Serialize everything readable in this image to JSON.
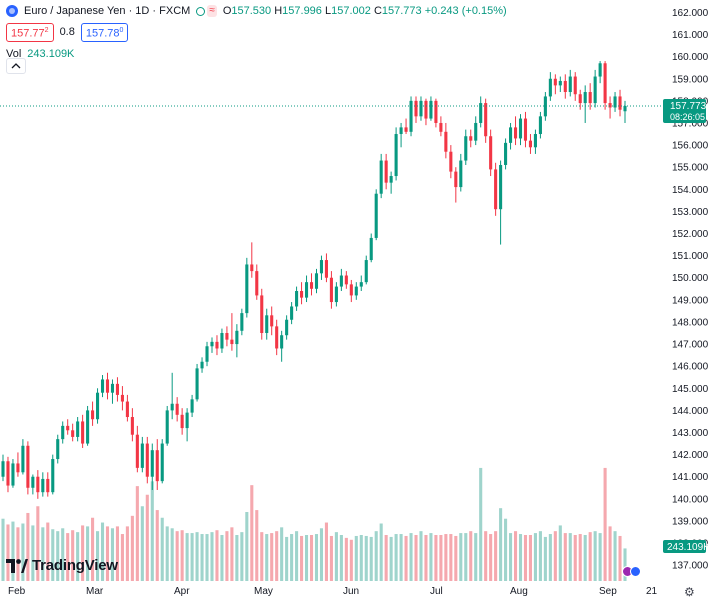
{
  "header": {
    "symbol_title": "Euro / Japanese Yen · 1D · FXCM",
    "ohlc": {
      "o_label": "O",
      "o_value": "157.530",
      "h_label": "H",
      "h_value": "157.996",
      "l_label": "L",
      "l_value": "157.002",
      "c_label": "C",
      "c_value": "157.773",
      "change": "+0.243 (+0.15%)"
    },
    "bid": "157.77",
    "bid_sup": "2",
    "spread": "0.8",
    "ask": "157.78",
    "ask_sup": "0",
    "volume_label": "Vol",
    "volume_value": "243.109K"
  },
  "branding": {
    "logo_text": "TradingView"
  },
  "colors": {
    "up": "#089981",
    "down": "#f23645",
    "vol_up": "#9fd4cc",
    "vol_down": "#f5a8ae",
    "accent": "#2962ff"
  },
  "icons": {
    "globe": "globe-icon",
    "collapse": "chevron-up-icon",
    "settings": "gear-icon",
    "logo": "tradingview-logo-icon"
  },
  "chart_data": {
    "type": "candlestick",
    "title": "Euro / Japanese Yen · 1D · FXCM",
    "y_axis": {
      "range": [
        136.6,
        162.2
      ],
      "ticks": [
        "137.000",
        "138.000",
        "139.000",
        "140.000",
        "141.000",
        "142.000",
        "143.000",
        "144.000",
        "145.000",
        "146.000",
        "147.000",
        "148.000",
        "149.000",
        "150.000",
        "151.000",
        "152.000",
        "153.000",
        "154.000",
        "155.000",
        "156.000",
        "157.000",
        "158.000",
        "159.000",
        "160.000",
        "161.000",
        "162.000"
      ]
    },
    "x_axis": {
      "labels": [
        "Feb",
        "Mar",
        "Apr",
        "May",
        "Jun",
        "Jul",
        "Aug",
        "Sep",
        "21"
      ]
    },
    "last_price_label": "157.773",
    "countdown_label": "08:26:05",
    "volume_last_label": "243.109K",
    "grid": false,
    "candles": [
      {
        "o": 141.0,
        "h": 142.0,
        "l": 140.8,
        "c": 141.7
      },
      {
        "o": 141.7,
        "h": 141.9,
        "l": 140.3,
        "c": 140.6
      },
      {
        "o": 140.6,
        "h": 141.8,
        "l": 140.5,
        "c": 141.6
      },
      {
        "o": 141.6,
        "h": 142.1,
        "l": 141.0,
        "c": 141.2
      },
      {
        "o": 141.2,
        "h": 142.7,
        "l": 141.1,
        "c": 142.4
      },
      {
        "o": 142.4,
        "h": 142.6,
        "l": 140.2,
        "c": 140.5
      },
      {
        "o": 140.5,
        "h": 141.1,
        "l": 140.2,
        "c": 141.0
      },
      {
        "o": 141.0,
        "h": 141.3,
        "l": 140.0,
        "c": 140.3
      },
      {
        "o": 140.3,
        "h": 141.2,
        "l": 140.1,
        "c": 140.9
      },
      {
        "o": 140.9,
        "h": 141.2,
        "l": 140.1,
        "c": 140.3
      },
      {
        "o": 140.3,
        "h": 142.0,
        "l": 140.2,
        "c": 141.8
      },
      {
        "o": 141.8,
        "h": 142.9,
        "l": 141.6,
        "c": 142.7
      },
      {
        "o": 142.7,
        "h": 143.5,
        "l": 142.5,
        "c": 143.3
      },
      {
        "o": 143.3,
        "h": 143.6,
        "l": 142.9,
        "c": 143.1
      },
      {
        "o": 143.1,
        "h": 143.4,
        "l": 142.6,
        "c": 142.8
      },
      {
        "o": 142.8,
        "h": 143.7,
        "l": 142.6,
        "c": 143.5
      },
      {
        "o": 143.5,
        "h": 143.8,
        "l": 142.3,
        "c": 142.5
      },
      {
        "o": 142.5,
        "h": 144.2,
        "l": 142.4,
        "c": 144.0
      },
      {
        "o": 144.0,
        "h": 144.4,
        "l": 143.3,
        "c": 143.6
      },
      {
        "o": 143.6,
        "h": 145.0,
        "l": 143.4,
        "c": 144.8
      },
      {
        "o": 144.8,
        "h": 145.6,
        "l": 144.6,
        "c": 145.4
      },
      {
        "o": 145.4,
        "h": 145.7,
        "l": 144.5,
        "c": 144.8
      },
      {
        "o": 144.8,
        "h": 145.4,
        "l": 144.3,
        "c": 145.2
      },
      {
        "o": 145.2,
        "h": 145.5,
        "l": 144.4,
        "c": 144.7
      },
      {
        "o": 144.7,
        "h": 145.1,
        "l": 144.0,
        "c": 144.4
      },
      {
        "o": 144.4,
        "h": 144.7,
        "l": 143.5,
        "c": 143.7
      },
      {
        "o": 143.7,
        "h": 144.1,
        "l": 142.6,
        "c": 142.9
      },
      {
        "o": 142.9,
        "h": 143.3,
        "l": 141.2,
        "c": 141.4
      },
      {
        "o": 141.4,
        "h": 142.8,
        "l": 141.2,
        "c": 142.5
      },
      {
        "o": 142.5,
        "h": 142.8,
        "l": 140.7,
        "c": 141.0
      },
      {
        "o": 141.0,
        "h": 142.5,
        "l": 140.4,
        "c": 142.2
      },
      {
        "o": 142.2,
        "h": 142.7,
        "l": 140.4,
        "c": 140.8
      },
      {
        "o": 140.8,
        "h": 142.7,
        "l": 140.7,
        "c": 142.5
      },
      {
        "o": 142.5,
        "h": 144.2,
        "l": 142.4,
        "c": 144.0
      },
      {
        "o": 144.0,
        "h": 145.7,
        "l": 143.6,
        "c": 144.3
      },
      {
        "o": 144.3,
        "h": 144.6,
        "l": 143.5,
        "c": 143.8
      },
      {
        "o": 143.8,
        "h": 144.1,
        "l": 142.9,
        "c": 143.2
      },
      {
        "o": 143.2,
        "h": 144.1,
        "l": 142.6,
        "c": 143.9
      },
      {
        "o": 143.9,
        "h": 144.7,
        "l": 143.7,
        "c": 144.5
      },
      {
        "o": 144.5,
        "h": 146.1,
        "l": 144.4,
        "c": 145.9
      },
      {
        "o": 145.9,
        "h": 146.4,
        "l": 145.7,
        "c": 146.2
      },
      {
        "o": 146.2,
        "h": 147.1,
        "l": 146.0,
        "c": 146.9
      },
      {
        "o": 146.9,
        "h": 147.3,
        "l": 146.6,
        "c": 147.1
      },
      {
        "o": 147.1,
        "h": 147.4,
        "l": 146.5,
        "c": 146.8
      },
      {
        "o": 146.8,
        "h": 147.7,
        "l": 146.6,
        "c": 147.5
      },
      {
        "o": 147.5,
        "h": 147.8,
        "l": 146.9,
        "c": 147.2
      },
      {
        "o": 147.2,
        "h": 148.4,
        "l": 146.7,
        "c": 147.0
      },
      {
        "o": 147.0,
        "h": 147.9,
        "l": 146.4,
        "c": 147.6
      },
      {
        "o": 147.6,
        "h": 148.6,
        "l": 147.4,
        "c": 148.4
      },
      {
        "o": 148.4,
        "h": 150.9,
        "l": 148.2,
        "c": 150.6
      },
      {
        "o": 150.6,
        "h": 151.6,
        "l": 150.0,
        "c": 150.3
      },
      {
        "o": 150.3,
        "h": 150.6,
        "l": 149.0,
        "c": 149.2
      },
      {
        "o": 149.2,
        "h": 149.5,
        "l": 147.2,
        "c": 147.5
      },
      {
        "o": 147.5,
        "h": 148.6,
        "l": 147.2,
        "c": 148.3
      },
      {
        "o": 148.3,
        "h": 148.7,
        "l": 147.4,
        "c": 147.8
      },
      {
        "o": 147.8,
        "h": 148.1,
        "l": 146.5,
        "c": 146.8
      },
      {
        "o": 146.8,
        "h": 147.6,
        "l": 146.2,
        "c": 147.4
      },
      {
        "o": 147.4,
        "h": 148.3,
        "l": 147.2,
        "c": 148.1
      },
      {
        "o": 148.1,
        "h": 148.9,
        "l": 147.9,
        "c": 148.7
      },
      {
        "o": 148.7,
        "h": 149.6,
        "l": 148.5,
        "c": 149.4
      },
      {
        "o": 149.4,
        "h": 149.8,
        "l": 148.8,
        "c": 149.1
      },
      {
        "o": 149.1,
        "h": 150.1,
        "l": 148.9,
        "c": 149.8
      },
      {
        "o": 149.8,
        "h": 150.2,
        "l": 149.2,
        "c": 149.5
      },
      {
        "o": 149.5,
        "h": 150.4,
        "l": 149.3,
        "c": 150.2
      },
      {
        "o": 150.2,
        "h": 151.0,
        "l": 149.9,
        "c": 150.8
      },
      {
        "o": 150.8,
        "h": 151.1,
        "l": 149.8,
        "c": 150.0
      },
      {
        "o": 150.0,
        "h": 150.3,
        "l": 148.6,
        "c": 148.9
      },
      {
        "o": 148.9,
        "h": 149.8,
        "l": 148.7,
        "c": 149.6
      },
      {
        "o": 149.6,
        "h": 150.4,
        "l": 149.4,
        "c": 150.1
      },
      {
        "o": 150.1,
        "h": 150.3,
        "l": 149.5,
        "c": 149.7
      },
      {
        "o": 149.7,
        "h": 149.9,
        "l": 148.9,
        "c": 149.2
      },
      {
        "o": 149.2,
        "h": 149.8,
        "l": 149.0,
        "c": 149.6
      },
      {
        "o": 149.6,
        "h": 150.1,
        "l": 149.4,
        "c": 149.8
      },
      {
        "o": 149.8,
        "h": 151.0,
        "l": 149.7,
        "c": 150.8
      },
      {
        "o": 150.8,
        "h": 152.0,
        "l": 150.7,
        "c": 151.8
      },
      {
        "o": 151.8,
        "h": 154.0,
        "l": 151.7,
        "c": 153.8
      },
      {
        "o": 153.8,
        "h": 155.6,
        "l": 153.6,
        "c": 155.3
      },
      {
        "o": 155.3,
        "h": 155.6,
        "l": 154.0,
        "c": 154.3
      },
      {
        "o": 154.3,
        "h": 154.8,
        "l": 153.8,
        "c": 154.6
      },
      {
        "o": 154.6,
        "h": 156.8,
        "l": 154.4,
        "c": 156.5
      },
      {
        "o": 156.5,
        "h": 157.0,
        "l": 155.9,
        "c": 156.8
      },
      {
        "o": 156.8,
        "h": 157.2,
        "l": 156.5,
        "c": 156.6
      },
      {
        "o": 156.6,
        "h": 158.2,
        "l": 156.4,
        "c": 158.0
      },
      {
        "o": 158.0,
        "h": 158.2,
        "l": 157.0,
        "c": 157.3
      },
      {
        "o": 157.3,
        "h": 158.2,
        "l": 157.1,
        "c": 158.0
      },
      {
        "o": 158.0,
        "h": 158.1,
        "l": 156.9,
        "c": 157.2
      },
      {
        "o": 157.2,
        "h": 158.2,
        "l": 157.1,
        "c": 158.0
      },
      {
        "o": 158.0,
        "h": 158.1,
        "l": 156.8,
        "c": 157.0
      },
      {
        "o": 157.0,
        "h": 157.3,
        "l": 156.4,
        "c": 156.6
      },
      {
        "o": 156.6,
        "h": 157.0,
        "l": 155.4,
        "c": 155.7
      },
      {
        "o": 155.7,
        "h": 156.0,
        "l": 154.5,
        "c": 154.8
      },
      {
        "o": 154.8,
        "h": 155.0,
        "l": 153.4,
        "c": 154.1
      },
      {
        "o": 154.1,
        "h": 155.6,
        "l": 153.9,
        "c": 155.3
      },
      {
        "o": 155.3,
        "h": 156.7,
        "l": 155.1,
        "c": 156.4
      },
      {
        "o": 156.4,
        "h": 156.7,
        "l": 155.9,
        "c": 156.2
      },
      {
        "o": 156.2,
        "h": 157.3,
        "l": 156.0,
        "c": 157.0
      },
      {
        "o": 157.0,
        "h": 158.2,
        "l": 156.8,
        "c": 157.9
      },
      {
        "o": 157.9,
        "h": 158.1,
        "l": 156.1,
        "c": 156.4
      },
      {
        "o": 156.4,
        "h": 156.7,
        "l": 154.6,
        "c": 154.9
      },
      {
        "o": 154.9,
        "h": 155.2,
        "l": 152.8,
        "c": 153.1
      },
      {
        "o": 153.1,
        "h": 155.3,
        "l": 151.5,
        "c": 155.1
      },
      {
        "o": 155.1,
        "h": 156.3,
        "l": 154.9,
        "c": 156.1
      },
      {
        "o": 156.1,
        "h": 157.0,
        "l": 155.8,
        "c": 156.8
      },
      {
        "o": 156.8,
        "h": 157.3,
        "l": 156.0,
        "c": 156.3
      },
      {
        "o": 156.3,
        "h": 157.4,
        "l": 156.0,
        "c": 157.2
      },
      {
        "o": 157.2,
        "h": 157.5,
        "l": 155.9,
        "c": 156.2
      },
      {
        "o": 156.2,
        "h": 156.5,
        "l": 155.6,
        "c": 155.9
      },
      {
        "o": 155.9,
        "h": 156.7,
        "l": 155.6,
        "c": 156.5
      },
      {
        "o": 156.5,
        "h": 157.5,
        "l": 156.3,
        "c": 157.3
      },
      {
        "o": 157.3,
        "h": 158.4,
        "l": 157.1,
        "c": 158.2
      },
      {
        "o": 158.2,
        "h": 159.3,
        "l": 158.0,
        "c": 159.0
      },
      {
        "o": 159.0,
        "h": 159.2,
        "l": 158.3,
        "c": 158.7
      },
      {
        "o": 158.7,
        "h": 159.1,
        "l": 158.4,
        "c": 158.9
      },
      {
        "o": 158.9,
        "h": 159.2,
        "l": 158.1,
        "c": 158.4
      },
      {
        "o": 158.4,
        "h": 159.4,
        "l": 158.2,
        "c": 159.1
      },
      {
        "o": 159.1,
        "h": 159.3,
        "l": 158.0,
        "c": 158.3
      },
      {
        "o": 158.3,
        "h": 158.5,
        "l": 157.6,
        "c": 157.9
      },
      {
        "o": 157.9,
        "h": 158.7,
        "l": 157.0,
        "c": 158.4
      },
      {
        "o": 158.4,
        "h": 158.8,
        "l": 157.6,
        "c": 157.9
      },
      {
        "o": 157.9,
        "h": 159.4,
        "l": 157.7,
        "c": 159.1
      },
      {
        "o": 159.1,
        "h": 159.8,
        "l": 158.8,
        "c": 159.7
      },
      {
        "o": 159.7,
        "h": 159.8,
        "l": 157.6,
        "c": 157.9
      },
      {
        "o": 157.9,
        "h": 158.2,
        "l": 157.2,
        "c": 157.7
      },
      {
        "o": 157.7,
        "h": 158.4,
        "l": 157.5,
        "c": 158.2
      },
      {
        "o": 158.2,
        "h": 158.5,
        "l": 157.3,
        "c": 157.6
      },
      {
        "o": 157.53,
        "h": 158.0,
        "l": 157.0,
        "c": 157.77
      }
    ],
    "volumes": [
      65,
      59,
      62,
      56,
      60,
      71,
      58,
      78,
      56,
      61,
      54,
      52,
      55,
      50,
      53,
      51,
      58,
      57,
      66,
      52,
      61,
      57,
      55,
      57,
      49,
      57,
      68,
      99,
      78,
      90,
      104,
      74,
      66,
      57,
      55,
      52,
      53,
      50,
      50,
      51,
      49,
      49,
      51,
      53,
      48,
      52,
      56,
      48,
      51,
      72,
      100,
      74,
      51,
      49,
      50,
      52,
      56,
      46,
      49,
      52,
      47,
      48,
      48,
      49,
      55,
      61,
      47,
      51,
      48,
      45,
      43,
      47,
      48,
      47,
      46,
      52,
      60,
      48,
      46,
      49,
      49,
      47,
      50,
      48,
      52,
      48,
      50,
      48,
      48,
      49,
      49,
      47,
      50,
      50,
      52,
      50,
      118,
      52,
      49,
      52,
      76,
      65,
      50,
      52,
      49,
      48,
      48,
      50,
      52,
      46,
      49,
      52,
      58,
      50,
      50,
      48,
      49,
      48,
      51,
      52,
      50,
      118,
      57,
      52,
      47,
      34
    ]
  }
}
